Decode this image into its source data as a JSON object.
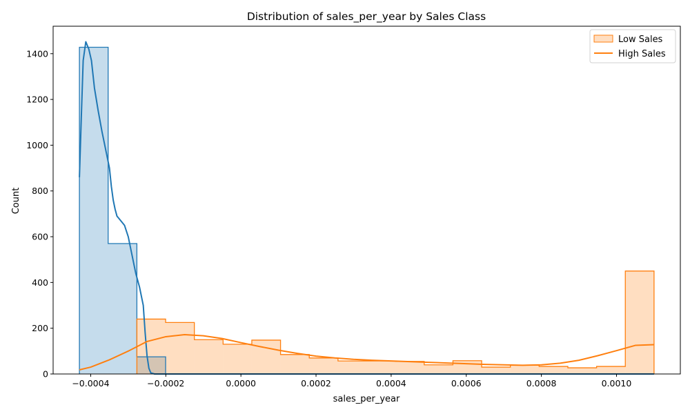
{
  "chart_data": {
    "type": "histogram",
    "title": "Distribution of sales_per_year by Sales Class",
    "xlabel": "sales_per_year",
    "ylabel": "Count",
    "xlim": [
      -0.0005,
      0.00117
    ],
    "ylim": [
      0,
      1520
    ],
    "xticks": [
      -0.0004,
      -0.0002,
      0.0,
      0.0002,
      0.0004,
      0.0006,
      0.0008,
      0.001
    ],
    "xtick_labels": [
      "−0.0004",
      "−0.0002",
      "0.0000",
      "0.0002",
      "0.0004",
      "0.0006",
      "0.0008",
      "0.0010"
    ],
    "yticks": [
      0,
      200,
      400,
      600,
      800,
      1000,
      1200,
      1400
    ],
    "ytick_labels": [
      "0",
      "200",
      "400",
      "600",
      "800",
      "1000",
      "1200",
      "1400"
    ],
    "grid": false,
    "legend_position": "top-right",
    "legend": [
      "Low Sales",
      "High Sales"
    ],
    "bin_start": -0.00043,
    "bin_width": 7.65e-05,
    "series": [
      {
        "color": "#1f77b4",
        "counts": [
          1428,
          570,
          75,
          0,
          0,
          0,
          0,
          0,
          0,
          0,
          0,
          0,
          0,
          0,
          0,
          0,
          0,
          0,
          0,
          0
        ],
        "kde": [
          [
            -0.00043,
            860
          ],
          [
            -0.000425,
            1120
          ],
          [
            -0.00042,
            1370
          ],
          [
            -0.000413,
            1452
          ],
          [
            -0.000405,
            1420
          ],
          [
            -0.000398,
            1370
          ],
          [
            -0.00039,
            1250
          ],
          [
            -0.00038,
            1150
          ],
          [
            -0.00037,
            1060
          ],
          [
            -0.00036,
            980
          ],
          [
            -0.00035,
            900
          ],
          [
            -0.000345,
            820
          ],
          [
            -0.00034,
            760
          ],
          [
            -0.000335,
            720
          ],
          [
            -0.00033,
            690
          ],
          [
            -0.000325,
            680
          ],
          [
            -0.00031,
            650
          ],
          [
            -0.0003,
            600
          ],
          [
            -0.00029,
            520
          ],
          [
            -0.00028,
            440
          ],
          [
            -0.00027,
            380
          ],
          [
            -0.00026,
            300
          ],
          [
            -0.000255,
            180
          ],
          [
            -0.00025,
            80
          ],
          [
            -0.000245,
            25
          ],
          [
            -0.00024,
            5
          ],
          [
            -0.00023,
            0
          ],
          [
            0.0011,
            0
          ]
        ]
      },
      {
        "color": "#ff7f0e",
        "counts": [
          0,
          0,
          240,
          225,
          150,
          130,
          148,
          85,
          70,
          57,
          57,
          55,
          40,
          58,
          30,
          38,
          33,
          27,
          33,
          450
        ],
        "kde": [
          [
            -0.00043,
            18
          ],
          [
            -0.0004,
            30
          ],
          [
            -0.00035,
            62
          ],
          [
            -0.0003,
            100
          ],
          [
            -0.00025,
            142
          ],
          [
            -0.0002,
            163
          ],
          [
            -0.00015,
            172
          ],
          [
            -0.0001,
            167
          ],
          [
            -5e-05,
            155
          ],
          [
            0.0,
            137
          ],
          [
            5e-05,
            120
          ],
          [
            0.0001,
            104
          ],
          [
            0.00015,
            90
          ],
          [
            0.0002,
            78
          ],
          [
            0.00025,
            70
          ],
          [
            0.0003,
            64
          ],
          [
            0.00035,
            60
          ],
          [
            0.0004,
            57
          ],
          [
            0.00045,
            54
          ],
          [
            0.0005,
            51
          ],
          [
            0.00055,
            48
          ],
          [
            0.0006,
            45
          ],
          [
            0.00065,
            42
          ],
          [
            0.0007,
            40
          ],
          [
            0.00075,
            38
          ],
          [
            0.0008,
            40
          ],
          [
            0.00085,
            47
          ],
          [
            0.0009,
            60
          ],
          [
            0.00095,
            80
          ],
          [
            0.001,
            102
          ],
          [
            0.00105,
            125
          ],
          [
            0.0011,
            128
          ]
        ]
      }
    ]
  }
}
